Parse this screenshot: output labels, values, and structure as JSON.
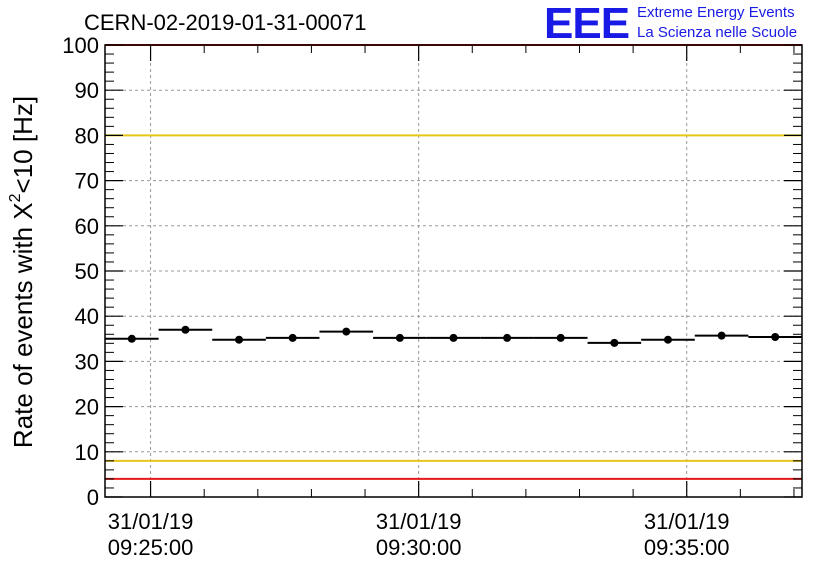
{
  "header": {
    "run_title": "CERN-02-2019-01-31-00071",
    "logo_text": "EEE",
    "logo_line1": "Extreme Energy Events",
    "logo_line2": "La Scienza nelle Scuole"
  },
  "chart_data": {
    "type": "scatter",
    "title": "CERN-02-2019-01-31-00071",
    "ylabel": "Rate of events with X",
    "ylabel_sup": "2",
    "ylabel_rest": "<10 [Hz]",
    "ylim": [
      0,
      100
    ],
    "xlim": [
      "09:24:09",
      "09:37:09"
    ],
    "yticks": [
      0,
      10,
      20,
      30,
      40,
      50,
      60,
      70,
      80,
      90,
      100
    ],
    "xticks": [
      {
        "date": "31/01/19",
        "time": "09:25:00",
        "t": "09:25:00"
      },
      {
        "date": "31/01/19",
        "time": "09:30:00",
        "t": "09:30:00"
      },
      {
        "date": "31/01/19",
        "time": "09:35:00",
        "t": "09:35:00"
      }
    ],
    "grid": true,
    "reference_lines": [
      {
        "y": 100,
        "color": "#e61a1a"
      },
      {
        "y": 80,
        "color": "#e6c619"
      },
      {
        "y": 8,
        "color": "#e6c619"
      },
      {
        "y": 4,
        "color": "#e61a1a"
      }
    ],
    "bin_width_s": 60,
    "points": [
      {
        "x": "09:24:39",
        "y": 35.0
      },
      {
        "x": "09:25:39",
        "y": 37.0
      },
      {
        "x": "09:26:39",
        "y": 34.8
      },
      {
        "x": "09:27:39",
        "y": 35.2
      },
      {
        "x": "09:28:39",
        "y": 36.6
      },
      {
        "x": "09:29:39",
        "y": 35.2
      },
      {
        "x": "09:30:39",
        "y": 35.2
      },
      {
        "x": "09:31:39",
        "y": 35.2
      },
      {
        "x": "09:32:39",
        "y": 35.2
      },
      {
        "x": "09:33:39",
        "y": 34.1
      },
      {
        "x": "09:34:39",
        "y": 34.8
      },
      {
        "x": "09:35:39",
        "y": 35.7
      },
      {
        "x": "09:36:39",
        "y": 35.4
      }
    ],
    "marker_color": "#000000"
  }
}
